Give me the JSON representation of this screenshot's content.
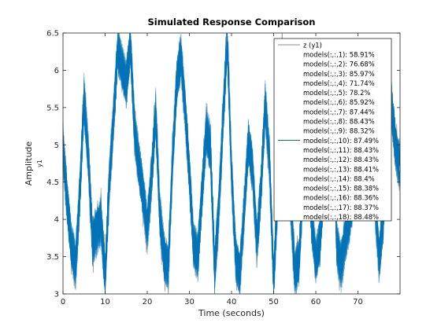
{
  "chart_data": {
    "type": "line",
    "title": "Simulated Response Comparison",
    "xlabel": "Time (seconds)",
    "ylabel": "Amplitude",
    "ylabel_secondary": "y1",
    "xlim": [
      0,
      80
    ],
    "ylim": [
      3,
      6.5
    ],
    "xticks": [
      "0",
      "10",
      "20",
      "30",
      "40",
      "50",
      "60",
      "70"
    ],
    "yticks": [
      "3",
      "3.5",
      "4",
      "4.5",
      "5",
      "5.5",
      "6",
      "6.5"
    ],
    "grid": false,
    "legend_position": "top-right",
    "colors": {
      "measured": "#8c8c8c",
      "models": "#0072bd",
      "highlight": "#1a7a4a"
    },
    "x": [
      0,
      1,
      2,
      3,
      4,
      5,
      6,
      7,
      8,
      9,
      10,
      11,
      12,
      13,
      14,
      15,
      16,
      17,
      18,
      19,
      20,
      21,
      22,
      23,
      24,
      25,
      26,
      27,
      28,
      29,
      30,
      31,
      32,
      33,
      34,
      35,
      36,
      37,
      38,
      39,
      40,
      41,
      42,
      43,
      44,
      45,
      46,
      47,
      48,
      49,
      50,
      51,
      52,
      53,
      54,
      55,
      56,
      57,
      58,
      59,
      60,
      61,
      62,
      63,
      64,
      65,
      66,
      67,
      68,
      69,
      70,
      71,
      72,
      73,
      74,
      75,
      76,
      77,
      78,
      79,
      80
    ],
    "y_response": [
      5.0,
      4.2,
      3.6,
      3.4,
      4.4,
      5.6,
      4.8,
      3.7,
      3.9,
      4.0,
      3.2,
      4.5,
      5.4,
      6.3,
      6.0,
      5.8,
      6.4,
      5.2,
      4.7,
      4.3,
      3.9,
      4.6,
      5.4,
      4.0,
      3.5,
      3.4,
      4.8,
      5.8,
      6.2,
      5.5,
      4.6,
      3.6,
      3.5,
      4.4,
      5.2,
      4.9,
      3.3,
      4.2,
      5.4,
      6.4,
      4.6,
      3.5,
      3.3,
      4.1,
      5.0,
      4.7,
      3.7,
      4.4,
      5.5,
      4.8,
      3.2,
      4.4,
      6.1,
      5.4,
      4.3,
      3.3,
      3.4,
      4.5,
      5.0,
      4.0,
      3.4,
      3.7,
      4.6,
      5.2,
      5.6,
      3.6,
      3.4,
      3.8,
      4.0,
      4.3,
      5.2,
      5.9,
      5.6,
      4.9,
      4.3,
      3.5,
      4.0,
      5.2,
      5.5,
      5.0,
      4.7
    ],
    "series": [
      {
        "name": "z (y1)",
        "style": "measured"
      },
      {
        "name": "models(:,:,1): 58.91%",
        "style": "model"
      },
      {
        "name": "models(:,:,2): 76.68%",
        "style": "model"
      },
      {
        "name": "models(:,:,3): 85.97%",
        "style": "model"
      },
      {
        "name": "models(:,:,4): 71.74%",
        "style": "model"
      },
      {
        "name": "models(:,:,5): 78.2%",
        "style": "model"
      },
      {
        "name": "models(:,:,6): 85.92%",
        "style": "model"
      },
      {
        "name": "models(:,:,7): 87.44%",
        "style": "model"
      },
      {
        "name": "models(:,:,8): 88.43%",
        "style": "model"
      },
      {
        "name": "models(:,:,9): 88.32%",
        "style": "model"
      },
      {
        "name": "models(:,:,10): 87.49%",
        "style": "highlight"
      },
      {
        "name": "models(:,:,11): 88.43%",
        "style": "model"
      },
      {
        "name": "models(:,:,12): 88.43%",
        "style": "model"
      },
      {
        "name": "models(:,:,13): 88.41%",
        "style": "model"
      },
      {
        "name": "models(:,:,14): 88.4%",
        "style": "model"
      },
      {
        "name": "models(:,:,15): 88.38%",
        "style": "model"
      },
      {
        "name": "models(:,:,16): 88.36%",
        "style": "model"
      },
      {
        "name": "models(:,:,17): 88.37%",
        "style": "model"
      },
      {
        "name": "models(:,:,18): 88.48%",
        "style": "model"
      }
    ]
  }
}
